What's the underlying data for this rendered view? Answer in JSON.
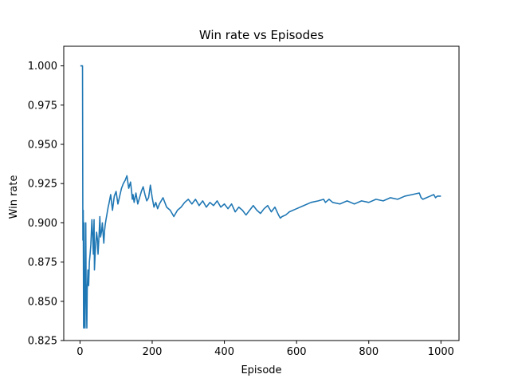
{
  "chart_data": {
    "type": "line",
    "title": "Win rate vs Episodes",
    "xlabel": "Episode",
    "ylabel": "Win rate",
    "xlim": [
      -45,
      1050
    ],
    "ylim": [
      0.825,
      1.0125
    ],
    "xticks": [
      0,
      200,
      400,
      600,
      800,
      1000
    ],
    "yticks": [
      0.825,
      0.85,
      0.875,
      0.9,
      0.925,
      0.95,
      0.975,
      1.0
    ],
    "xtick_labels": [
      "0",
      "200",
      "400",
      "600",
      "800",
      "1000"
    ],
    "ytick_labels": [
      "0.825",
      "0.850",
      "0.875",
      "0.900",
      "0.925",
      "0.950",
      "0.975",
      "1.000"
    ],
    "grid": false,
    "line_color": "#1f77b4",
    "series": [
      {
        "x": [
          1,
          3,
          5,
          6,
          7,
          8,
          9,
          10,
          11,
          12,
          14,
          15,
          16,
          17,
          18,
          19,
          20,
          22,
          24,
          26,
          28,
          30,
          33,
          35,
          37,
          39,
          40,
          42,
          44,
          46,
          48,
          50,
          53,
          55,
          57,
          60,
          62,
          64,
          66,
          68,
          70,
          72,
          75,
          78,
          80,
          85,
          90,
          95,
          100,
          105,
          110,
          115,
          120,
          125,
          130,
          135,
          140,
          143,
          145,
          147,
          150,
          155,
          160,
          165,
          170,
          175,
          180,
          185,
          190,
          195,
          200,
          205,
          210,
          215,
          220,
          230,
          240,
          250,
          260,
          270,
          280,
          290,
          300,
          310,
          320,
          330,
          340,
          350,
          360,
          370,
          380,
          390,
          400,
          410,
          420,
          430,
          440,
          450,
          460,
          470,
          480,
          490,
          500,
          510,
          520,
          530,
          540,
          550,
          555,
          560,
          570,
          580,
          600,
          620,
          640,
          660,
          675,
          680,
          690,
          700,
          720,
          740,
          760,
          780,
          800,
          820,
          840,
          860,
          880,
          900,
          920,
          940,
          945,
          950,
          960,
          970,
          980,
          985,
          990,
          1000
        ],
        "y": [
          1.0,
          1.0,
          1.0,
          1.0,
          1.0,
          0.889,
          0.908,
          0.833,
          0.9,
          0.84,
          0.833,
          0.867,
          0.9,
          0.857,
          0.85,
          0.833,
          0.857,
          0.87,
          0.86,
          0.875,
          0.88,
          0.886,
          0.902,
          0.892,
          0.88,
          0.902,
          0.87,
          0.88,
          0.888,
          0.894,
          0.89,
          0.88,
          0.893,
          0.904,
          0.891,
          0.895,
          0.9,
          0.893,
          0.887,
          0.895,
          0.899,
          0.902,
          0.906,
          0.91,
          0.912,
          0.918,
          0.908,
          0.917,
          0.92,
          0.912,
          0.917,
          0.922,
          0.925,
          0.927,
          0.93,
          0.922,
          0.926,
          0.92,
          0.915,
          0.918,
          0.913,
          0.919,
          0.912,
          0.916,
          0.92,
          0.923,
          0.918,
          0.914,
          0.916,
          0.924,
          0.916,
          0.91,
          0.913,
          0.909,
          0.912,
          0.916,
          0.91,
          0.908,
          0.904,
          0.908,
          0.91,
          0.913,
          0.915,
          0.912,
          0.915,
          0.911,
          0.914,
          0.91,
          0.913,
          0.911,
          0.914,
          0.91,
          0.912,
          0.909,
          0.912,
          0.907,
          0.91,
          0.908,
          0.905,
          0.908,
          0.911,
          0.908,
          0.906,
          0.909,
          0.911,
          0.907,
          0.91,
          0.905,
          0.903,
          0.904,
          0.905,
          0.907,
          0.909,
          0.911,
          0.913,
          0.914,
          0.915,
          0.913,
          0.915,
          0.913,
          0.912,
          0.914,
          0.912,
          0.914,
          0.913,
          0.915,
          0.914,
          0.916,
          0.915,
          0.917,
          0.918,
          0.919,
          0.916,
          0.915,
          0.916,
          0.917,
          0.918,
          0.916,
          0.917,
          0.917
        ]
      }
    ]
  }
}
